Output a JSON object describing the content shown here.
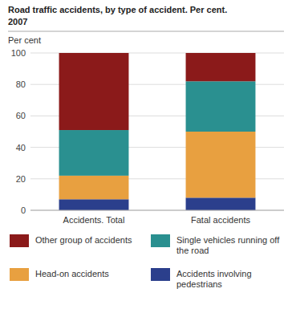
{
  "chart_data": {
    "type": "bar",
    "stacked": true,
    "title": "Road traffic accidents, by type of accident. Per cent.",
    "subtitle": "2007",
    "ylabel": "Per cent",
    "categories": [
      "Accidents. Total",
      "Fatal accidents"
    ],
    "series": [
      {
        "name": "Accidents involving pedestrians",
        "color": "#2b3f8c",
        "values": [
          7,
          8
        ]
      },
      {
        "name": "Head-on accidents",
        "color": "#e8a040",
        "values": [
          15,
          42
        ]
      },
      {
        "name": "Single vehicles running off the road",
        "color": "#2a9090",
        "values": [
          29,
          32
        ]
      },
      {
        "name": "Other group of accidents",
        "color": "#8b1a1a",
        "values": [
          49,
          18
        ]
      }
    ],
    "ylim": [
      0,
      100
    ],
    "yticks": [
      0,
      20,
      40,
      60,
      80,
      100
    ],
    "grid": true,
    "legend": "bottom"
  }
}
